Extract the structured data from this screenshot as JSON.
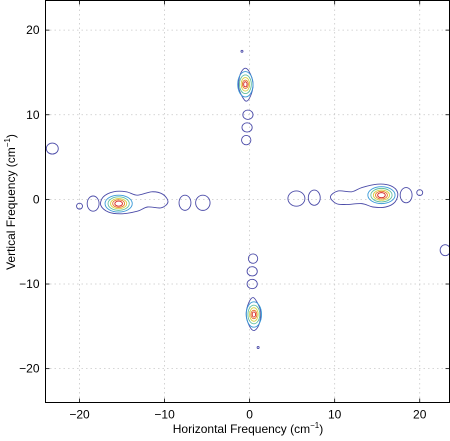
{
  "chart_data": {
    "type": "contour",
    "xlabel": "Horizontal Frequency (cm",
    "ylabel": "Vertical Frequency (cm",
    "axis_label_superscript": "−1",
    "axis_label_close": ")",
    "xlim": [
      -24,
      23.5
    ],
    "ylim": [
      -24,
      23.5
    ],
    "xticks": [
      -20,
      -10,
      0,
      10,
      20
    ],
    "yticks": [
      -20,
      -10,
      0,
      10,
      20
    ],
    "xtick_labels": [
      "−20",
      "−10",
      "0",
      "10",
      "20"
    ],
    "ytick_labels": [
      "−20",
      "−10",
      "0",
      "10",
      "20"
    ],
    "grid": true,
    "level_colors": [
      "#4b4ba8",
      "#3a9ad8",
      "#62c0a0",
      "#d8d040",
      "#e87a2a",
      "#d42020"
    ],
    "peaks": [
      {
        "x": -15.5,
        "y": -0.5
      },
      {
        "x": 15.5,
        "y": 0.5
      },
      {
        "x": -0.5,
        "y": 13.5
      },
      {
        "x": 0.5,
        "y": -13.5
      }
    ],
    "contours": [
      {
        "level": 0,
        "kind": "poly",
        "points": [
          [
            -17.5,
            -0.7
          ],
          [
            -17.2,
            0.3
          ],
          [
            -16,
            0.9
          ],
          [
            -14.5,
            0.9
          ],
          [
            -13.2,
            0.5
          ],
          [
            -11.5,
            0.9
          ],
          [
            -10.2,
            0.6
          ],
          [
            -9.6,
            -0.3
          ],
          [
            -10.4,
            -1
          ],
          [
            -12,
            -0.9
          ],
          [
            -13.2,
            -1.4
          ],
          [
            -15,
            -1.7
          ],
          [
            -16.6,
            -1.5
          ]
        ]
      },
      {
        "level": 1,
        "kind": "ellipse",
        "cx": -15.4,
        "cy": -0.5,
        "rx": 1.6,
        "ry": 1.0
      },
      {
        "level": 2,
        "kind": "ellipse",
        "cx": -15.4,
        "cy": -0.5,
        "rx": 1.25,
        "ry": 0.8
      },
      {
        "level": 3,
        "kind": "ellipse",
        "cx": -15.4,
        "cy": -0.5,
        "rx": 0.95,
        "ry": 0.6
      },
      {
        "level": 4,
        "kind": "ellipse",
        "cx": -15.4,
        "cy": -0.5,
        "rx": 0.7,
        "ry": 0.45
      },
      {
        "level": 5,
        "kind": "ellipse",
        "cx": -15.4,
        "cy": -0.5,
        "rx": 0.45,
        "ry": 0.3
      },
      {
        "level": 0,
        "kind": "ellipse",
        "cx": -18.4,
        "cy": -0.5,
        "rx": 0.7,
        "ry": 0.9
      },
      {
        "level": 0,
        "kind": "ellipse",
        "cx": -20,
        "cy": -0.8,
        "rx": 0.35,
        "ry": 0.35
      },
      {
        "level": 0,
        "kind": "ellipse",
        "cx": -7.6,
        "cy": -0.4,
        "rx": 0.7,
        "ry": 0.9
      },
      {
        "level": 0,
        "kind": "ellipse",
        "cx": -5.5,
        "cy": -0.4,
        "rx": 0.85,
        "ry": 0.9
      },
      {
        "level": 0,
        "kind": "poly",
        "points": [
          [
            17.4,
            0.8
          ],
          [
            17.1,
            -0.3
          ],
          [
            16,
            -0.9
          ],
          [
            14.5,
            -0.9
          ],
          [
            13.2,
            -0.5
          ],
          [
            11.4,
            -0.6
          ],
          [
            10.2,
            -0.5
          ],
          [
            9.5,
            0.3
          ],
          [
            10.4,
            1
          ],
          [
            12,
            0.9
          ],
          [
            13.2,
            1.4
          ],
          [
            15,
            1.8
          ],
          [
            16.6,
            1.6
          ]
        ]
      },
      {
        "level": 1,
        "kind": "ellipse",
        "cx": 15.5,
        "cy": 0.5,
        "rx": 1.6,
        "ry": 1.0
      },
      {
        "level": 2,
        "kind": "ellipse",
        "cx": 15.5,
        "cy": 0.5,
        "rx": 1.25,
        "ry": 0.8
      },
      {
        "level": 3,
        "kind": "ellipse",
        "cx": 15.5,
        "cy": 0.5,
        "rx": 0.95,
        "ry": 0.6
      },
      {
        "level": 4,
        "kind": "ellipse",
        "cx": 15.5,
        "cy": 0.5,
        "rx": 0.7,
        "ry": 0.45
      },
      {
        "level": 5,
        "kind": "ellipse",
        "cx": 15.5,
        "cy": 0.5,
        "rx": 0.45,
        "ry": 0.3
      },
      {
        "level": 0,
        "kind": "ellipse",
        "cx": 18.4,
        "cy": 0.5,
        "rx": 0.7,
        "ry": 0.9
      },
      {
        "level": 0,
        "kind": "ellipse",
        "cx": 20,
        "cy": 0.8,
        "rx": 0.35,
        "ry": 0.35
      },
      {
        "level": 0,
        "kind": "ellipse",
        "cx": 7.6,
        "cy": 0.2,
        "rx": 0.7,
        "ry": 0.9
      },
      {
        "level": 0,
        "kind": "ellipse",
        "cx": 5.5,
        "cy": 0.1,
        "rx": 1.0,
        "ry": 0.9
      },
      {
        "level": 0,
        "kind": "poly",
        "points": [
          [
            -0.5,
            15.5
          ],
          [
            0.1,
            14.8
          ],
          [
            0.4,
            13.5
          ],
          [
            0.1,
            12.2
          ],
          [
            -0.4,
            11.6
          ],
          [
            -0.9,
            12.2
          ],
          [
            -1.3,
            13.3
          ],
          [
            -1.1,
            14.8
          ]
        ]
      },
      {
        "level": 1,
        "kind": "ellipse",
        "cx": -0.5,
        "cy": 13.6,
        "rx": 0.9,
        "ry": 1.5
      },
      {
        "level": 2,
        "kind": "ellipse",
        "cx": -0.5,
        "cy": 13.6,
        "rx": 0.7,
        "ry": 1.1
      },
      {
        "level": 3,
        "kind": "ellipse",
        "cx": -0.5,
        "cy": 13.6,
        "rx": 0.5,
        "ry": 0.8
      },
      {
        "level": 4,
        "kind": "ellipse",
        "cx": -0.5,
        "cy": 13.6,
        "rx": 0.35,
        "ry": 0.5
      },
      {
        "level": 5,
        "kind": "ellipse",
        "cx": -0.5,
        "cy": 13.6,
        "rx": 0.2,
        "ry": 0.3
      },
      {
        "level": 0,
        "kind": "ellipse",
        "cx": -0.2,
        "cy": 10.0,
        "rx": 0.6,
        "ry": 0.55
      },
      {
        "level": 0,
        "kind": "ellipse",
        "cx": -0.3,
        "cy": 8.5,
        "rx": 0.6,
        "ry": 0.55
      },
      {
        "level": 0,
        "kind": "ellipse",
        "cx": -0.4,
        "cy": 7.0,
        "rx": 0.55,
        "ry": 0.55
      },
      {
        "level": 0,
        "kind": "ellipse",
        "cx": -0.9,
        "cy": 17.5,
        "rx": 0.12,
        "ry": 0.12
      },
      {
        "level": 0,
        "kind": "poly",
        "points": [
          [
            0.5,
            -15.5
          ],
          [
            -0.1,
            -14.8
          ],
          [
            -0.4,
            -13.5
          ],
          [
            -0.1,
            -12.2
          ],
          [
            0.4,
            -11.6
          ],
          [
            0.9,
            -12.2
          ],
          [
            1.3,
            -13.3
          ],
          [
            1.1,
            -14.8
          ]
        ]
      },
      {
        "level": 1,
        "kind": "ellipse",
        "cx": 0.5,
        "cy": -13.6,
        "rx": 0.9,
        "ry": 1.5
      },
      {
        "level": 2,
        "kind": "ellipse",
        "cx": 0.5,
        "cy": -13.6,
        "rx": 0.7,
        "ry": 1.1
      },
      {
        "level": 3,
        "kind": "ellipse",
        "cx": 0.5,
        "cy": -13.6,
        "rx": 0.5,
        "ry": 0.8
      },
      {
        "level": 4,
        "kind": "ellipse",
        "cx": 0.5,
        "cy": -13.6,
        "rx": 0.35,
        "ry": 0.5
      },
      {
        "level": 5,
        "kind": "ellipse",
        "cx": 0.5,
        "cy": -13.6,
        "rx": 0.2,
        "ry": 0.3
      },
      {
        "level": 0,
        "kind": "ellipse",
        "cx": 0.3,
        "cy": -10.0,
        "rx": 0.6,
        "ry": 0.55
      },
      {
        "level": 0,
        "kind": "ellipse",
        "cx": 0.3,
        "cy": -8.5,
        "rx": 0.6,
        "ry": 0.55
      },
      {
        "level": 0,
        "kind": "ellipse",
        "cx": 0.4,
        "cy": -7.0,
        "rx": 0.55,
        "ry": 0.55
      },
      {
        "level": 0,
        "kind": "ellipse",
        "cx": 1.0,
        "cy": -17.5,
        "rx": 0.12,
        "ry": 0.12
      },
      {
        "level": 0,
        "kind": "ellipse",
        "cx": -23.2,
        "cy": 6.0,
        "rx": 0.7,
        "ry": 0.65
      },
      {
        "level": 0,
        "kind": "ellipse",
        "cx": 23.0,
        "cy": -6.0,
        "rx": 0.6,
        "ry": 0.65
      }
    ]
  }
}
